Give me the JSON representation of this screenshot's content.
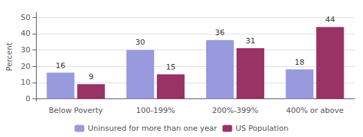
{
  "chart_data": {
    "type": "bar",
    "categories": [
      "Below Poverty",
      "100-199%",
      "200%-399%",
      "400% or above"
    ],
    "series": [
      {
        "name": "Uninsured for more than one year",
        "color": "#9999DD",
        "values": [
          16,
          30,
          36,
          18
        ]
      },
      {
        "name": "US Population",
        "color": "#993366",
        "values": [
          9,
          15,
          31,
          44
        ]
      }
    ],
    "ylabel": "Percent",
    "ylim": [
      -1.5,
      53
    ],
    "yticks": [
      0,
      10,
      20,
      30,
      40,
      50
    ],
    "grid": true,
    "legend": "bottom",
    "data_labels": true
  }
}
